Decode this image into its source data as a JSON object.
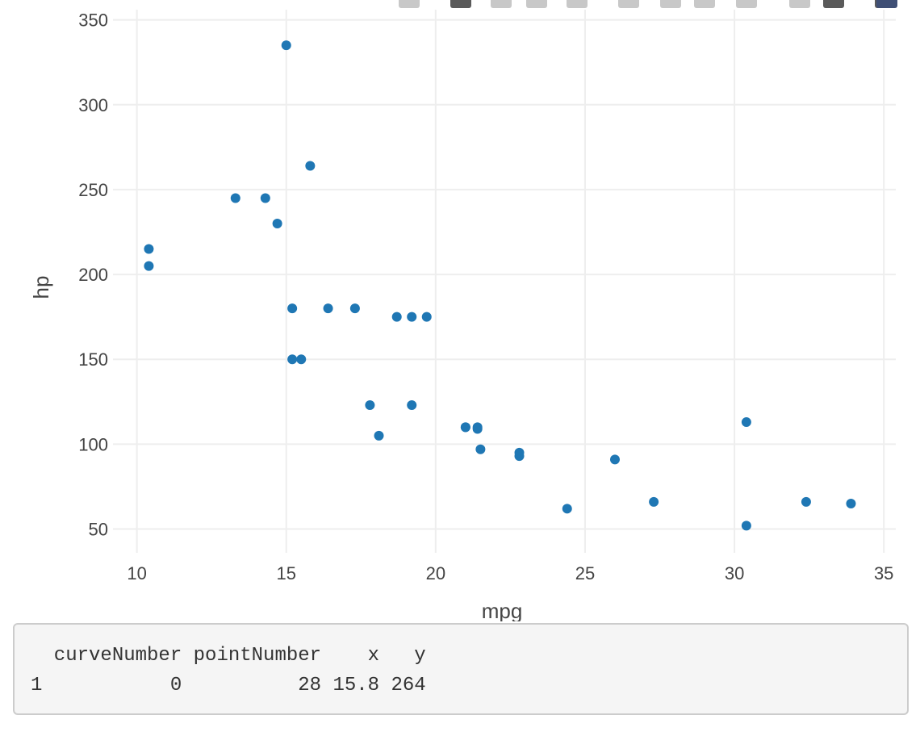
{
  "modebar": {
    "icons": [
      "camera-icon",
      "zoom-icon",
      "pan-icon",
      "box-select-icon",
      "lasso-select-icon",
      "zoom-in-icon",
      "zoom-out-icon",
      "autoscale-icon",
      "reset-axes-icon",
      "spike-lines-icon",
      "hover-closest-icon",
      "hover-compare-icon",
      "plotly-logo-icon"
    ]
  },
  "chart_data": {
    "type": "scatter",
    "xlabel": "mpg",
    "ylabel": "hp",
    "xlim": [
      9.2,
      35.4
    ],
    "ylim": [
      36,
      356
    ],
    "xticks": [
      10,
      15,
      20,
      25,
      30,
      35
    ],
    "yticks": [
      50,
      100,
      150,
      200,
      250,
      300,
      350
    ],
    "grid": true,
    "marker_color": "#1f77b4",
    "gridline_color": "#eeeeee",
    "points": [
      [
        21.0,
        110
      ],
      [
        21.0,
        110
      ],
      [
        22.8,
        93
      ],
      [
        21.4,
        110
      ],
      [
        18.7,
        175
      ],
      [
        18.1,
        105
      ],
      [
        14.3,
        245
      ],
      [
        24.4,
        62
      ],
      [
        22.8,
        95
      ],
      [
        19.2,
        123
      ],
      [
        17.8,
        123
      ],
      [
        16.4,
        180
      ],
      [
        17.3,
        180
      ],
      [
        15.2,
        180
      ],
      [
        10.4,
        205
      ],
      [
        10.4,
        215
      ],
      [
        14.7,
        230
      ],
      [
        32.4,
        66
      ],
      [
        30.4,
        52
      ],
      [
        33.9,
        65
      ],
      [
        21.5,
        97
      ],
      [
        15.5,
        150
      ],
      [
        15.2,
        150
      ],
      [
        13.3,
        245
      ],
      [
        19.2,
        175
      ],
      [
        27.3,
        66
      ],
      [
        26.0,
        91
      ],
      [
        30.4,
        113
      ],
      [
        15.8,
        264
      ],
      [
        19.7,
        175
      ],
      [
        15.0,
        335
      ],
      [
        21.4,
        109
      ]
    ]
  },
  "output": {
    "header": "  curveNumber pointNumber    x   y",
    "row": "1           0          28 15.8 264"
  }
}
